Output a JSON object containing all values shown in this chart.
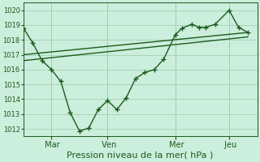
{
  "background_color": "#cceedd",
  "line_color": "#1a5c1a",
  "grid_color": "#99ccaa",
  "ylim": [
    1011.5,
    1020.5
  ],
  "yticks": [
    1012,
    1013,
    1014,
    1015,
    1016,
    1017,
    1018,
    1019,
    1020
  ],
  "xlabel": "Pression niveau de la mer( hPa )",
  "xtick_labels": [
    " Mar",
    " Ven",
    " Mer",
    " Jeu"
  ],
  "xtick_x": [
    0.12,
    0.36,
    0.65,
    0.88
  ],
  "series1_x": [
    0.0,
    0.04,
    0.08,
    0.12,
    0.16,
    0.2,
    0.24,
    0.28,
    0.32,
    0.36,
    0.4,
    0.44,
    0.48,
    0.52,
    0.56,
    0.6,
    0.65,
    0.68,
    0.72,
    0.75,
    0.78,
    0.82,
    0.88,
    0.92,
    0.96
  ],
  "series1_y": [
    1018.8,
    1017.8,
    1016.6,
    1016.0,
    1015.2,
    1013.1,
    1011.85,
    1012.05,
    1013.3,
    1013.9,
    1013.3,
    1014.1,
    1015.4,
    1015.8,
    1016.0,
    1016.7,
    1018.35,
    1018.8,
    1019.05,
    1018.85,
    1018.85,
    1019.05,
    1020.0,
    1018.85,
    1018.5
  ],
  "series2_x": [
    0.0,
    0.96
  ],
  "series2_y": [
    1016.6,
    1018.2
  ],
  "series3_x": [
    0.0,
    0.96
  ],
  "series3_y": [
    1017.0,
    1018.5
  ],
  "marker": "+",
  "marker_size": 4,
  "linewidth1": 1.0,
  "linewidth2": 1.0,
  "linewidth3": 1.0,
  "figsize": [
    3.2,
    2.0
  ],
  "dpi": 100,
  "ytick_fontsize": 6,
  "xtick_fontsize": 7,
  "xlabel_fontsize": 8
}
